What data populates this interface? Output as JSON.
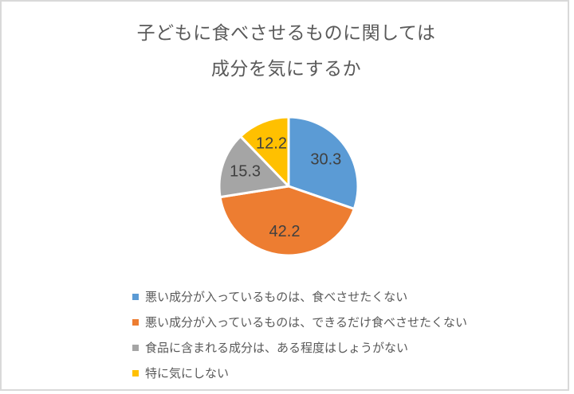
{
  "title": {
    "line1": "子どもに食べさせるものに関しては",
    "line2": "成分を気にするか"
  },
  "chart_data": {
    "type": "pie",
    "title": "子どもに食べさせるものに関しては 成分を気にするか",
    "start_angle_deg": 0,
    "direction": "clockwise",
    "total": 100.0,
    "slices": [
      {
        "label": "悪い成分が入っているものは、食べさせたくない",
        "value": 30.3,
        "data_label": "30.3",
        "color": "#5B9BD5"
      },
      {
        "label": "悪い成分が入っているものは、できるだけ食べさせたくない",
        "value": 42.2,
        "data_label": "42.2",
        "color": "#ED7D31"
      },
      {
        "label": "食品に含まれる成分は、ある程度はしょうがない",
        "value": 15.3,
        "data_label": "15.3",
        "color": "#A5A5A5"
      },
      {
        "label": "特に気にしない",
        "value": 12.2,
        "data_label": "12.2",
        "color": "#FFC000"
      }
    ],
    "data_label_color": "#404040",
    "title_color": "#595959",
    "legend_position": "bottom-left",
    "frame_border_color": "#d9d9d9"
  }
}
